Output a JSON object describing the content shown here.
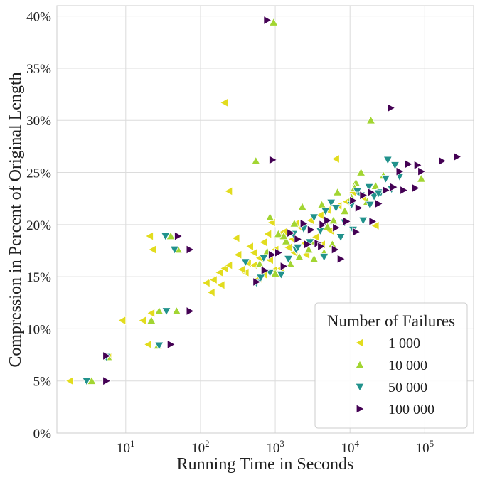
{
  "chart_data": {
    "type": "scatter",
    "xlabel": "Running Time in Seconds",
    "ylabel": "Compression in Percent of Original Length",
    "xscale": "log",
    "xlim": [
      1.2,
      450000
    ],
    "ylim": [
      0,
      41
    ],
    "x_ticks": [
      {
        "value": 10,
        "base": "10",
        "exp": "1"
      },
      {
        "value": 100,
        "base": "10",
        "exp": "2"
      },
      {
        "value": 1000,
        "base": "10",
        "exp": "3"
      },
      {
        "value": 10000,
        "base": "10",
        "exp": "4"
      },
      {
        "value": 100000,
        "base": "10",
        "exp": "5"
      }
    ],
    "y_ticks": [
      {
        "value": 0,
        "label": "0%"
      },
      {
        "value": 5,
        "label": "5%"
      },
      {
        "value": 10,
        "label": "10%"
      },
      {
        "value": 15,
        "label": "15%"
      },
      {
        "value": 20,
        "label": "20%"
      },
      {
        "value": 25,
        "label": "25%"
      },
      {
        "value": 30,
        "label": "30%"
      },
      {
        "value": 35,
        "label": "35%"
      },
      {
        "value": 40,
        "label": "40%"
      }
    ],
    "grid": true,
    "legend": {
      "title": "Number of Failures",
      "placement": "lower-right"
    },
    "series": [
      {
        "name": "1 000",
        "marker": "triangle-left",
        "color": "#e2dc1e",
        "points": [
          [
            1.8,
            5.0
          ],
          [
            5.8,
            7.3
          ],
          [
            9,
            10.8
          ],
          [
            17,
            10.8
          ],
          [
            22,
            11.5
          ],
          [
            20,
            8.5
          ],
          [
            21,
            18.9
          ],
          [
            23,
            17.6
          ],
          [
            210,
            31.7
          ],
          [
            240,
            23.2
          ],
          [
            120,
            14.4
          ],
          [
            140,
            13.5
          ],
          [
            150,
            14.7
          ],
          [
            180,
            15.4
          ],
          [
            190,
            14.2
          ],
          [
            210,
            15.8
          ],
          [
            240,
            16.1
          ],
          [
            300,
            18.7
          ],
          [
            320,
            17.1
          ],
          [
            400,
            15.4
          ],
          [
            430,
            16.3
          ],
          [
            460,
            17.9
          ],
          [
            520,
            17.3
          ],
          [
            620,
            16.8
          ],
          [
            700,
            18.3
          ],
          [
            800,
            19.1
          ],
          [
            900,
            20.2
          ],
          [
            1000,
            17.6
          ],
          [
            1100,
            18.9
          ],
          [
            1300,
            19.3
          ],
          [
            1500,
            17.8
          ],
          [
            1700,
            18.6
          ],
          [
            1900,
            20.1
          ],
          [
            2200,
            19.7
          ],
          [
            2500,
            18.2
          ],
          [
            3000,
            20.4
          ],
          [
            3500,
            18.8
          ],
          [
            4000,
            20.9
          ],
          [
            5000,
            21.4
          ],
          [
            6500,
            26.3
          ],
          [
            7000,
            21.8
          ],
          [
            9000,
            22.2
          ],
          [
            11000,
            23.1
          ],
          [
            15000,
            22.6
          ],
          [
            22000,
            19.9
          ],
          [
            600,
            14.8
          ],
          [
            700,
            15.2
          ],
          [
            850,
            16.6
          ],
          [
            950,
            15.6
          ],
          [
            1200,
            15.8
          ],
          [
            1800,
            17.3
          ],
          [
            2600,
            17.1
          ],
          [
            4200,
            18.1
          ],
          [
            5500,
            19.4
          ],
          [
            520,
            16.1
          ],
          [
            360,
            15.7
          ]
        ]
      },
      {
        "name": "10 000",
        "marker": "triangle-up",
        "color": "#a2d532",
        "points": [
          [
            3.5,
            5.0
          ],
          [
            5.8,
            7.3
          ],
          [
            22,
            10.8
          ],
          [
            27,
            8.4
          ],
          [
            28,
            11.7
          ],
          [
            48,
            11.7
          ],
          [
            40,
            18.9
          ],
          [
            50,
            17.6
          ],
          [
            550,
            26.1
          ],
          [
            950,
            39.4
          ],
          [
            19000,
            30.0
          ],
          [
            90000,
            24.4
          ],
          [
            850,
            20.7
          ],
          [
            1100,
            19.1
          ],
          [
            1400,
            18.4
          ],
          [
            1800,
            20.1
          ],
          [
            2300,
            21.7
          ],
          [
            2800,
            17.6
          ],
          [
            3300,
            16.7
          ],
          [
            4200,
            21.9
          ],
          [
            5000,
            19.8
          ],
          [
            6000,
            20.4
          ],
          [
            6800,
            23.1
          ],
          [
            8500,
            21.3
          ],
          [
            10500,
            22.6
          ],
          [
            12000,
            24.0
          ],
          [
            14000,
            25.0
          ],
          [
            17000,
            22.2
          ],
          [
            22000,
            23.7
          ],
          [
            28000,
            24.7
          ],
          [
            620,
            16.2
          ],
          [
            780,
            17.4
          ],
          [
            1000,
            15.3
          ],
          [
            1600,
            16.2
          ],
          [
            2100,
            16.9
          ],
          [
            3000,
            18.4
          ],
          [
            4500,
            17.3
          ],
          [
            5800,
            18.1
          ],
          [
            11500,
            23.5
          ],
          [
            1300,
            18.9
          ]
        ]
      },
      {
        "name": "50 000",
        "marker": "triangle-down",
        "color": "#21928c",
        "points": [
          [
            3,
            5.0
          ],
          [
            5.5,
            7.3
          ],
          [
            28,
            8.4
          ],
          [
            35,
            11.7
          ],
          [
            45,
            17.6
          ],
          [
            34,
            18.9
          ],
          [
            560,
            14.4
          ],
          [
            640,
            14.9
          ],
          [
            850,
            15.4
          ],
          [
            1200,
            15.2
          ],
          [
            1500,
            16.7
          ],
          [
            1750,
            19.1
          ],
          [
            1900,
            17.6
          ],
          [
            2400,
            19.6
          ],
          [
            3300,
            20.7
          ],
          [
            4000,
            19.4
          ],
          [
            4700,
            21.3
          ],
          [
            5600,
            22.1
          ],
          [
            6500,
            21.6
          ],
          [
            8500,
            20.2
          ],
          [
            10500,
            21.9
          ],
          [
            12500,
            23.2
          ],
          [
            15000,
            20.4
          ],
          [
            18000,
            23.6
          ],
          [
            21000,
            22.7
          ],
          [
            26000,
            23.1
          ],
          [
            32000,
            26.2
          ],
          [
            36000,
            23.4
          ],
          [
            40000,
            25.7
          ],
          [
            46000,
            24.6
          ],
          [
            2000,
            17.8
          ],
          [
            2900,
            18.3
          ],
          [
            4500,
            16.9
          ],
          [
            7500,
            18.8
          ],
          [
            11000,
            19.5
          ],
          [
            14000,
            22.8
          ],
          [
            18500,
            21.9
          ],
          [
            24000,
            23.0
          ],
          [
            30000,
            24.4
          ],
          [
            400,
            16.4
          ],
          [
            700,
            16.8
          ]
        ]
      },
      {
        "name": "100 000",
        "marker": "triangle-right",
        "color": "#440154",
        "points": [
          [
            5.5,
            5.0
          ],
          [
            5.5,
            7.4
          ],
          [
            40,
            8.5
          ],
          [
            50,
            18.9
          ],
          [
            72,
            17.6
          ],
          [
            72,
            11.7
          ],
          [
            780,
            39.6
          ],
          [
            920,
            26.2
          ],
          [
            35000,
            31.2
          ],
          [
            170000,
            26.1
          ],
          [
            270000,
            26.5
          ],
          [
            80000,
            25.7
          ],
          [
            90000,
            25.1
          ],
          [
            560,
            14.5
          ],
          [
            720,
            15.6
          ],
          [
            900,
            17.1
          ],
          [
            1100,
            17.3
          ],
          [
            1300,
            16.0
          ],
          [
            1600,
            19.2
          ],
          [
            2000,
            18.6
          ],
          [
            2400,
            20.1
          ],
          [
            3000,
            19.5
          ],
          [
            3700,
            18.2
          ],
          [
            4300,
            20.0
          ],
          [
            5000,
            20.4
          ],
          [
            6300,
            17.6
          ],
          [
            7500,
            16.7
          ],
          [
            9000,
            20.3
          ],
          [
            11000,
            22.3
          ],
          [
            13000,
            21.6
          ],
          [
            15000,
            22.8
          ],
          [
            19000,
            23.1
          ],
          [
            24000,
            22.0
          ],
          [
            30000,
            23.3
          ],
          [
            38000,
            23.6
          ],
          [
            52000,
            23.3
          ],
          [
            60000,
            25.8
          ],
          [
            75000,
            23.5
          ],
          [
            2700,
            18.1
          ],
          [
            4100,
            17.9
          ],
          [
            6500,
            19.7
          ],
          [
            12000,
            19.3
          ],
          [
            20000,
            20.3
          ],
          [
            46000,
            25.1
          ]
        ]
      }
    ]
  }
}
